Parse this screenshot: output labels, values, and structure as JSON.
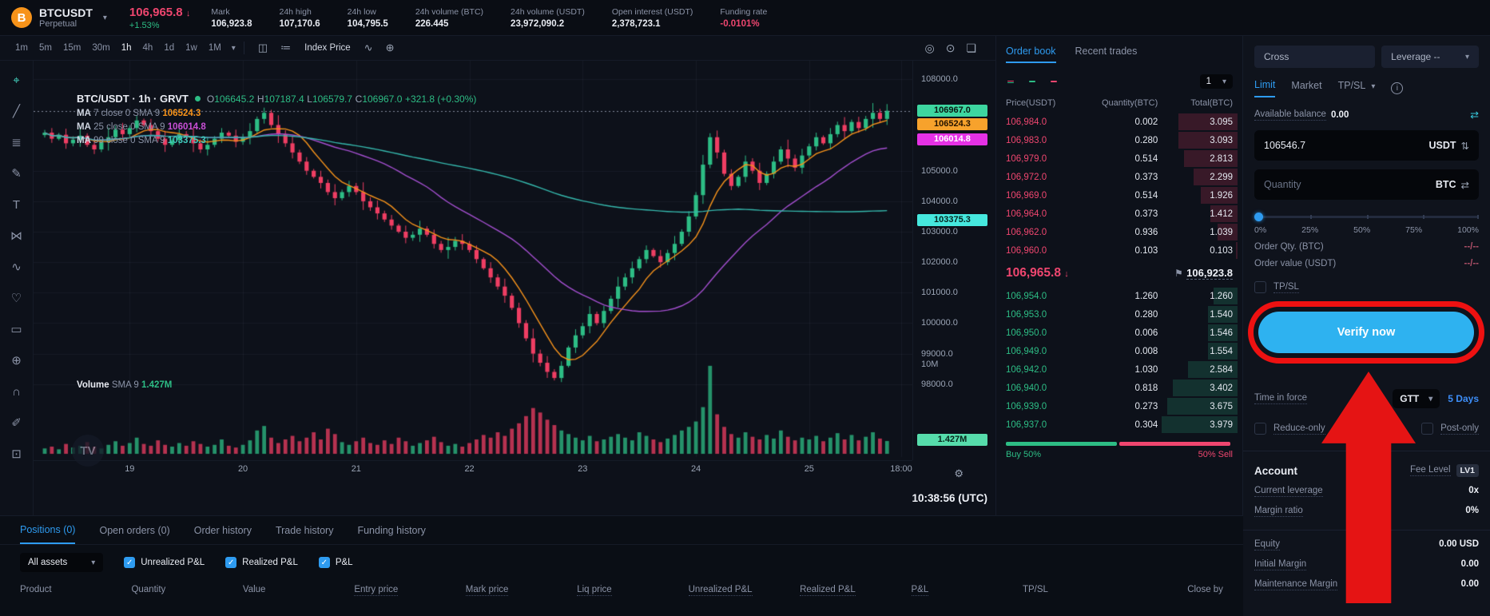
{
  "topbar": {
    "symbol": "BTCUSDT",
    "market_type": "Perpetual",
    "last_price": "106,965.8",
    "last_price_dir": "↓",
    "change_pct": "+1.53%",
    "stats": [
      {
        "label": "Mark",
        "value": "106,923.8"
      },
      {
        "label": "24h high",
        "value": "107,170.6"
      },
      {
        "label": "24h low",
        "value": "104,795.5"
      },
      {
        "label": "24h volume (BTC)",
        "value": "226.445"
      },
      {
        "label": "24h volume (USDT)",
        "value": "23,972,090.2"
      },
      {
        "label": "Open interest (USDT)",
        "value": "2,378,723.1"
      },
      {
        "label": "Funding rate",
        "value": "-0.0101%",
        "negative": true
      }
    ]
  },
  "chart": {
    "timeframes": [
      "1m",
      "5m",
      "15m",
      "30m",
      "1h",
      "4h",
      "1d",
      "1w",
      "1M"
    ],
    "active_timeframe": "1h",
    "index_price_label": "Index Price",
    "legend_title": "BTC/USDT · 1h · GRVT",
    "ohlc": {
      "o": "106645.2",
      "h": "107187.4",
      "l": "106579.7",
      "c": "106967.0",
      "change": "+321.8 (+0.30%)"
    },
    "ma_lines": [
      {
        "prefix": "MA",
        "params": "7 close 0 SMA 9",
        "value": "106524.3",
        "color": "#f7931a"
      },
      {
        "prefix": "MA",
        "params": "25 close 0 SMA 9",
        "value": "106014.8",
        "color": "#c94fd6"
      },
      {
        "prefix": "MA",
        "params": "99 close 0 SMA 9",
        "value": "103375.3",
        "color": "#3fc9bc"
      }
    ],
    "volume_legend": {
      "label": "Volume",
      "sub": "SMA 9",
      "value": "1.427M"
    },
    "clock": "10:38:56 (UTC)",
    "left_tools": [
      {
        "name": "crosshair",
        "glyph": "⌖",
        "active": true
      },
      {
        "name": "trend-line",
        "glyph": "╱"
      },
      {
        "name": "fib-retracement",
        "glyph": "≣"
      },
      {
        "name": "brush",
        "glyph": "✎"
      },
      {
        "name": "text-tool",
        "glyph": "T"
      },
      {
        "name": "xabcd-pattern",
        "glyph": "⋈"
      },
      {
        "name": "forecast",
        "glyph": "∿"
      },
      {
        "name": "emoji",
        "glyph": "♡"
      },
      {
        "name": "measure",
        "glyph": "▭"
      },
      {
        "name": "zoom-in",
        "glyph": "⊕"
      },
      {
        "name": "magnet",
        "glyph": "∩"
      },
      {
        "name": "draw",
        "glyph": "✐"
      },
      {
        "name": "lock",
        "glyph": "⊡"
      }
    ]
  },
  "chart_data": {
    "type": "candlestick",
    "timeframe": "1h",
    "price_range": [
      97600,
      108400
    ],
    "closes": [
      106250,
      106050,
      106180,
      105900,
      106020,
      106150,
      105850,
      105700,
      105950,
      106100,
      106350,
      106200,
      106400,
      106650,
      106500,
      106300,
      106050,
      105850,
      106000,
      106200,
      106100,
      105900,
      105700,
      105850,
      106050,
      106250,
      106150,
      105950,
      106100,
      106300,
      106700,
      106900,
      106500,
      106200,
      105900,
      105600,
      105300,
      105000,
      104800,
      104600,
      104300,
      104100,
      104300,
      104500,
      104300,
      104000,
      103800,
      103600,
      103400,
      103200,
      103000,
      102800,
      102900,
      103100,
      102900,
      102600,
      102400,
      102500,
      102700,
      102600,
      102400,
      102100,
      101800,
      101500,
      101200,
      100900,
      100500,
      100000,
      99500,
      99000,
      98700,
      98400,
      98200,
      98600,
      99200,
      99600,
      99900,
      100300,
      100000,
      100400,
      100800,
      101200,
      101500,
      101800,
      102100,
      102400,
      102200,
      102000,
      102300,
      102600,
      103000,
      103500,
      104200,
      105200,
      106100,
      105600,
      104900,
      104500,
      104800,
      105300,
      105000,
      104600,
      104900,
      105300,
      105700,
      105400,
      105100,
      105500,
      105800,
      106100,
      105900,
      106200,
      106500,
      106300,
      106600,
      106400,
      106700,
      106900,
      106700,
      106967
    ],
    "volumes_M": [
      0.6,
      0.8,
      0.5,
      1.1,
      0.7,
      0.9,
      1.3,
      0.8,
      0.6,
      1.0,
      1.4,
      0.9,
      1.2,
      1.8,
      1.1,
      0.9,
      1.5,
      1.0,
      0.8,
      1.2,
      0.9,
      1.4,
      1.1,
      0.8,
      1.0,
      1.6,
      0.9,
      0.7,
      1.0,
      1.5,
      2.6,
      3.1,
      1.8,
      1.2,
      1.6,
      2.0,
      1.4,
      1.8,
      2.4,
      1.6,
      2.8,
      2.2,
      1.3,
      1.0,
      1.4,
      1.8,
      1.2,
      1.0,
      1.5,
      1.1,
      1.8,
      1.4,
      0.9,
      1.2,
      1.5,
      1.9,
      1.3,
      0.9,
      1.1,
      0.8,
      1.2,
      1.6,
      2.1,
      1.8,
      2.4,
      2.0,
      2.8,
      3.4,
      4.2,
      5.1,
      4.6,
      3.8,
      3.2,
      2.6,
      2.2,
      1.8,
      1.5,
      2.0,
      1.4,
      1.6,
      1.9,
      2.2,
      1.8,
      1.5,
      2.4,
      2.0,
      1.6,
      1.3,
      1.7,
      2.1,
      2.6,
      3.0,
      3.6,
      5.2,
      9.8,
      4.4,
      3.0,
      2.2,
      1.8,
      2.4,
      1.9,
      1.6,
      2.1,
      1.7,
      2.6,
      1.9,
      1.5,
      1.8,
      1.6,
      2.0,
      1.4,
      1.8,
      2.3,
      1.6,
      2.1,
      1.5,
      1.9,
      2.4,
      1.7,
      1.427
    ],
    "wick_pattern": [
      90,
      150,
      60,
      200,
      110,
      260,
      80,
      170,
      100,
      320,
      130,
      220
    ],
    "y_ticks": [
      [
        108000,
        "108000.0"
      ],
      [
        105000,
        "105000.0"
      ],
      [
        104000,
        "104000.0"
      ],
      [
        103000,
        "103000.0"
      ],
      [
        102000,
        "102000.0"
      ],
      [
        101000,
        "101000.0"
      ],
      [
        100000,
        "100000.0"
      ],
      [
        99000,
        "99000.0"
      ],
      [
        98000,
        "98000.0"
      ]
    ],
    "x_ticks": [
      [
        12,
        "19"
      ],
      [
        28,
        "20"
      ],
      [
        44,
        "21"
      ],
      [
        60,
        "22"
      ],
      [
        76,
        "23"
      ],
      [
        92,
        "24"
      ],
      [
        108,
        "25"
      ],
      [
        121,
        "18:00"
      ]
    ],
    "last_price": 106967.0,
    "price_tags": [
      {
        "price": 106967.0,
        "label": "106967.0",
        "bg": "#3dd6a0",
        "fg": "#0b1713"
      },
      {
        "price": 106524.3,
        "label": "106524.3",
        "bg": "#f7a22c",
        "fg": "#241300"
      },
      {
        "price": 106014.8,
        "label": "106014.8",
        "bg": "#e531e5",
        "fg": "#ffffff"
      },
      {
        "price": 103375.3,
        "label": "103375.3",
        "bg": "#46e8de",
        "fg": "#062420"
      }
    ],
    "volume_axis_label": "10M",
    "volume_max_M": 10.5,
    "volume_tag": {
      "label": "1.427M",
      "value_M": 1.427,
      "bg": "#56dcab",
      "fg": "#06241a"
    },
    "colors": {
      "up": "#2dbd85",
      "down": "#ef3e63",
      "ma7": "#f7931a",
      "ma25": "#a44fd0",
      "ma99": "#35b8ad",
      "grid": "rgba(148,160,185,0.07)"
    }
  },
  "order_book": {
    "tabs": [
      "Order book",
      "Recent trades"
    ],
    "depth_group": "1",
    "columns": [
      "Price(USDT)",
      "Quantity(BTC)",
      "Total(BTC)"
    ],
    "asks": [
      [
        "106,984.0",
        "0.002",
        "3.095"
      ],
      [
        "106,983.0",
        "0.280",
        "3.093"
      ],
      [
        "106,979.0",
        "0.514",
        "2.813"
      ],
      [
        "106,972.0",
        "0.373",
        "2.299"
      ],
      [
        "106,969.0",
        "0.514",
        "1.926"
      ],
      [
        "106,964.0",
        "0.373",
        "1.412"
      ],
      [
        "106,962.0",
        "0.936",
        "1.039"
      ],
      [
        "106,960.0",
        "0.103",
        "0.103"
      ]
    ],
    "bids": [
      [
        "106,954.0",
        "1.260",
        "1.260"
      ],
      [
        "106,953.0",
        "0.280",
        "1.540"
      ],
      [
        "106,950.0",
        "0.006",
        "1.546"
      ],
      [
        "106,949.0",
        "0.008",
        "1.554"
      ],
      [
        "106,942.0",
        "1.030",
        "2.584"
      ],
      [
        "106,940.0",
        "0.818",
        "3.402"
      ],
      [
        "106,939.0",
        "0.273",
        "3.675"
      ],
      [
        "106,937.0",
        "0.304",
        "3.979"
      ]
    ],
    "last_price": "106,965.8",
    "last_price_dir": "↓",
    "mark_price": "106,923.8",
    "buy_label": "Buy 50%",
    "sell_label": "50% Sell",
    "buy_pct": 50
  },
  "trade_panel": {
    "margin_mode": "Cross",
    "leverage_label": "Leverage --",
    "order_tabs": [
      "Limit",
      "Market",
      "TP/SL"
    ],
    "active_order_tab": "Limit",
    "available_balance_label": "Available balance",
    "available_balance": "0.00",
    "price_value": "106546.7",
    "price_unit": "USDT",
    "quantity_placeholder": "Quantity",
    "quantity_unit": "BTC",
    "slider_labels": [
      "0%",
      "25%",
      "50%",
      "75%",
      "100%"
    ],
    "order_qty_label": "Order Qty. (BTC)",
    "order_qty_value": "--/--",
    "order_value_label": "Order value (USDT)",
    "order_value_value": "--/--",
    "tpsl_label": "TP/SL",
    "verify_button_label": "Verify now",
    "time_in_force_label": "Time in force",
    "tif_value": "GTT",
    "tif_duration": "5 Days",
    "reduce_only_label": "Reduce-only",
    "post_only_label": "Post-only",
    "account": {
      "title": "Account",
      "fee_level_label": "Fee Level",
      "fee_level": "LV1",
      "rows_top": [
        [
          "Current leverage",
          "0x"
        ],
        [
          "Margin ratio",
          "0%"
        ]
      ],
      "rows_bottom": [
        [
          "Equity",
          "0.00 USD"
        ],
        [
          "Initial Margin",
          "0.00"
        ],
        [
          "Maintenance Margin",
          "0.00"
        ]
      ]
    },
    "annotation_color": "#ee1111"
  },
  "positions_panel": {
    "tabs": [
      {
        "label": "Positions (0)",
        "active": true
      },
      {
        "label": "Open orders (0)"
      },
      {
        "label": "Order history"
      },
      {
        "label": "Trade history"
      },
      {
        "label": "Funding history"
      }
    ],
    "asset_filter": "All assets",
    "filter_checkboxes": [
      "Unrealized P&L",
      "Realized P&L",
      "P&L"
    ],
    "columns": [
      {
        "label": "Product"
      },
      {
        "label": "Quantity"
      },
      {
        "label": "Value"
      },
      {
        "label": "Entry price",
        "dotted": true
      },
      {
        "label": "Mark price",
        "dotted": true
      },
      {
        "label": "Liq price",
        "dotted": true
      },
      {
        "label": "Unrealized P&L",
        "dotted": true
      },
      {
        "label": "Realized P&L",
        "dotted": true
      },
      {
        "label": "P&L",
        "dotted": true
      },
      {
        "label": "TP/SL"
      },
      {
        "label": "Close by"
      }
    ]
  }
}
